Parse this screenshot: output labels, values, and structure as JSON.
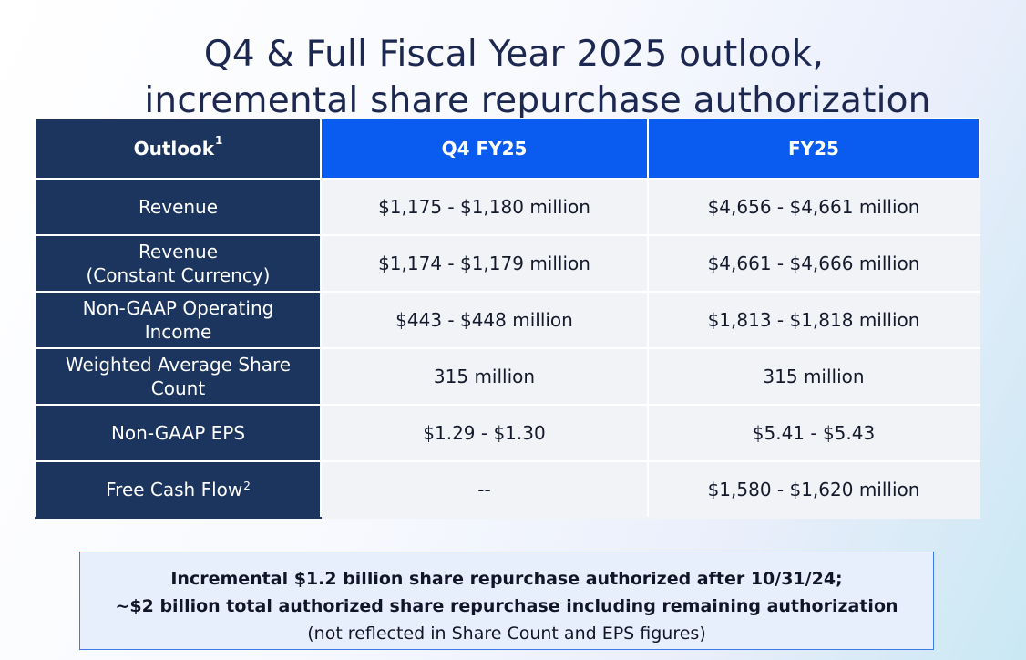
{
  "title": {
    "line1": "Q4 & Full Fiscal Year 2025 outlook,",
    "line2": "incremental share repurchase authorization"
  },
  "table": {
    "headers": {
      "label": "Outlook",
      "label_footnote": "1",
      "q4": "Q4 FY25",
      "fy": "FY25"
    },
    "rows": [
      {
        "label": "Revenue",
        "footnote": "",
        "q4": "$1,175 - $1,180 million",
        "fy": "$4,656 - $4,661 million"
      },
      {
        "label": "Revenue\n(Constant Currency)",
        "footnote": "",
        "q4": "$1,174 - $1,179 million",
        "fy": "$4,661 - $4,666 million"
      },
      {
        "label": "Non-GAAP Operating\nIncome",
        "footnote": "",
        "q4": "$443 - $448 million",
        "fy": "$1,813 - $1,818 million"
      },
      {
        "label": "Weighted Average Share\nCount",
        "footnote": "",
        "q4": "315 million",
        "fy": "315 million"
      },
      {
        "label": "Non-GAAP EPS",
        "footnote": "",
        "q4": "$1.29 - $1.30",
        "fy": "$5.41 - $5.43"
      },
      {
        "label": "Free Cash Flow",
        "footnote": "2",
        "q4": "--",
        "fy": "$1,580 - $1,620 million"
      }
    ]
  },
  "note": {
    "line1": "Incremental $1.2 billion share repurchase authorized after 10/31/24;",
    "line2": "~$2 billion total authorized share repurchase including remaining authorization",
    "line3": "(not reflected in Share Count and EPS figures)"
  },
  "colors": {
    "navy": "#1c355e",
    "blue": "#0a5cf0",
    "cell": "#f2f3f7",
    "note_border": "#3d79e8"
  }
}
